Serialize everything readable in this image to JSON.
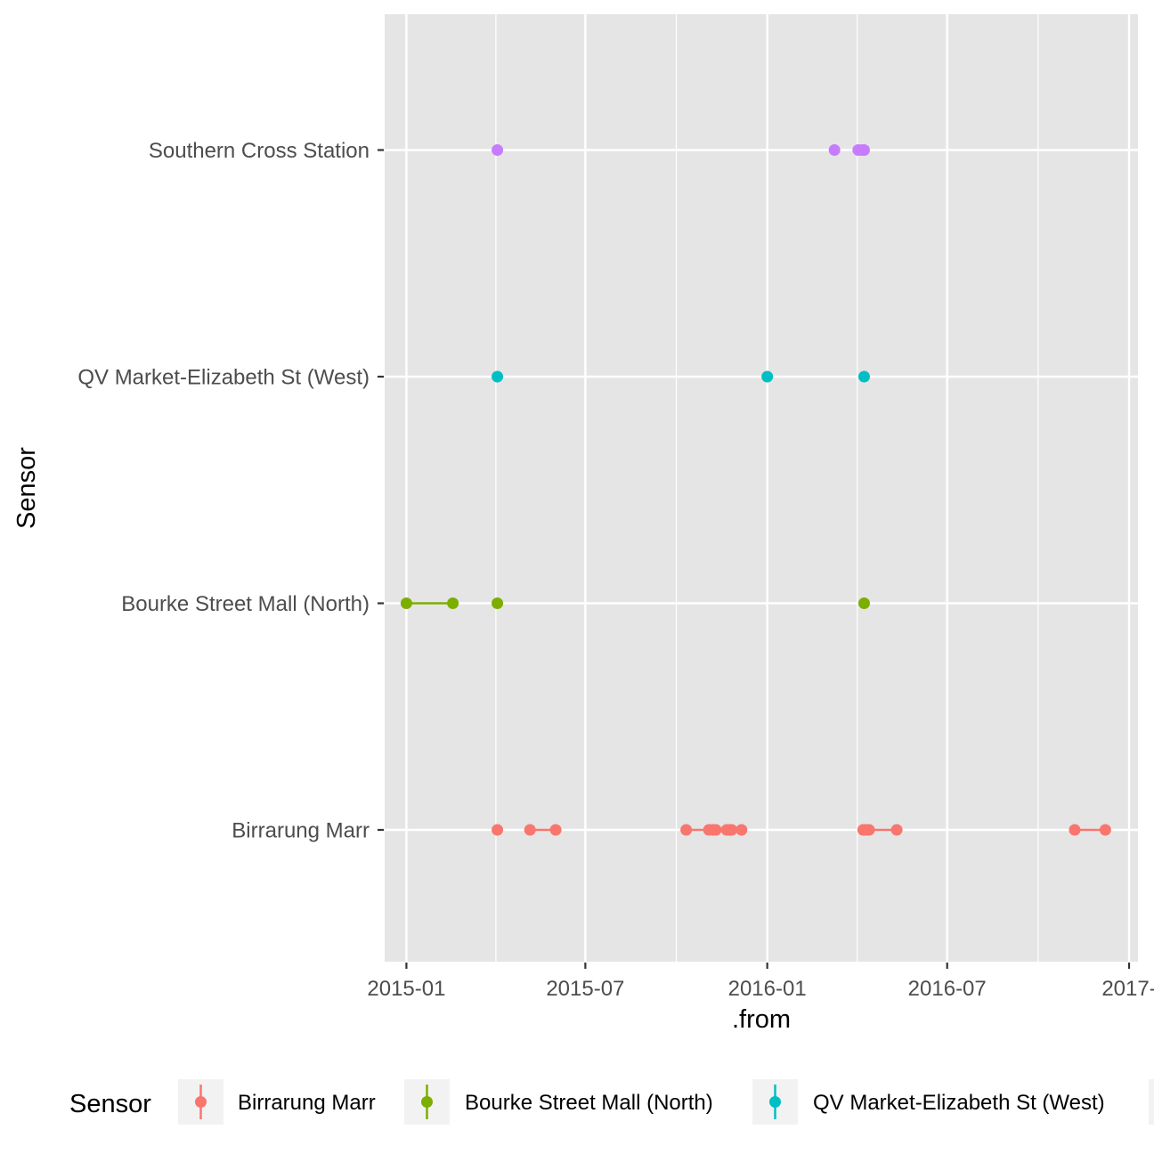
{
  "chart_data": {
    "type": "scatter",
    "title": "",
    "xlabel": ".from",
    "ylabel": "Sensor",
    "x_type": "date",
    "xlim": [
      "2014-12-10",
      "2017-01-10"
    ],
    "x_ticks": [
      "2015-01",
      "2015-07",
      "2016-01",
      "2016-07",
      "2017-"
    ],
    "x_tick_dates": [
      "2015-01-01",
      "2015-07-01",
      "2016-01-01",
      "2016-07-01",
      "2017-01-01"
    ],
    "categories": [
      "Birrarung Marr",
      "Bourke Street Mall (North)",
      "QV Market-Elizabeth St (West)",
      "Southern Cross Station"
    ],
    "grid": true,
    "legend_position": "bottom",
    "legend_title": "Sensor",
    "colors": {
      "panel_bg": "#e5e5e5",
      "grid": "#ffffff",
      "axis_tick": "#333333"
    },
    "series": [
      {
        "name": "Birrarung Marr",
        "color": "#F8766D",
        "points": [
          "2015-04-03",
          "2015-05-06",
          "2015-06-01",
          "2015-10-11",
          "2015-11-03",
          "2015-11-07",
          "2015-11-10",
          "2015-11-21",
          "2015-11-24",
          "2015-11-26",
          "2015-12-06",
          "2016-04-07",
          "2016-04-10",
          "2016-04-13",
          "2016-05-11",
          "2016-11-07",
          "2016-12-08"
        ],
        "segments": [
          [
            "2015-05-06",
            "2015-06-01"
          ],
          [
            "2015-10-11",
            "2015-12-06"
          ],
          [
            "2016-04-07",
            "2016-05-11"
          ],
          [
            "2016-11-07",
            "2016-12-08"
          ]
        ]
      },
      {
        "name": "Bourke Street Mall (North)",
        "color": "#7CAE00",
        "points": [
          "2015-01-01",
          "2015-02-17",
          "2015-04-03",
          "2016-04-08"
        ],
        "segments": [
          [
            "2015-01-01",
            "2015-02-17"
          ]
        ]
      },
      {
        "name": "QV Market-Elizabeth St (West)",
        "color": "#00BFC4",
        "points": [
          "2015-04-03",
          "2016-01-01",
          "2016-04-08"
        ],
        "segments": []
      },
      {
        "name": "Southern Cross Station",
        "color": "#C77CFF",
        "points": [
          "2015-04-03",
          "2016-03-09",
          "2016-04-02",
          "2016-04-06",
          "2016-04-08"
        ],
        "segments": []
      }
    ]
  }
}
